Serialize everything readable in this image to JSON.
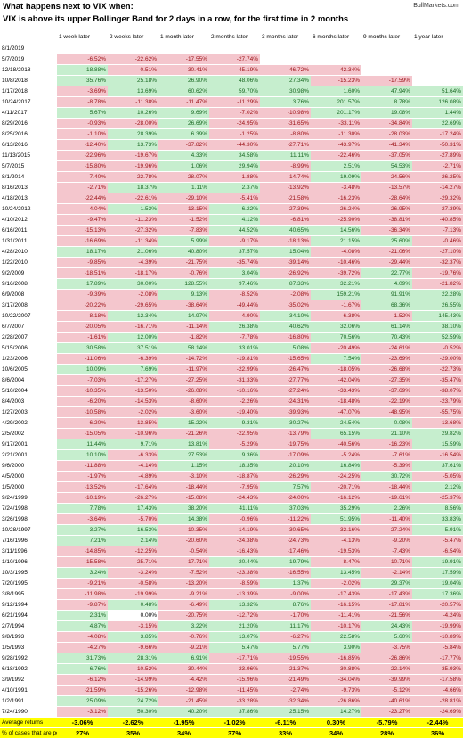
{
  "header": {
    "line1": "What happens next to VIX when:",
    "line2": "VIX is above its upper Bollinger Band for 2 days in a row, for the first time in 2 months",
    "site": "BullMarkets.com"
  },
  "chart_data": {
    "type": "table",
    "columns": [
      "1 week later",
      "2 weeks later",
      "1 month later",
      "2 months later",
      "3 months later",
      "6 months later",
      "9 months later",
      "1 year later"
    ],
    "rows": [
      {
        "date": "8/1/2019",
        "values": [
          "",
          "",
          "",
          "",
          "",
          "",
          "",
          ""
        ]
      },
      {
        "date": "5/7/2019",
        "values": [
          "-6.52%",
          "-22.62%",
          "-17.55%",
          "-27.74%",
          "",
          "",
          "",
          ""
        ]
      },
      {
        "date": "12/18/2018",
        "values": [
          "18.88%",
          "-0.51%",
          "-30.41%",
          "-45.19%",
          "-46.72%",
          "-42.34%",
          "",
          ""
        ]
      },
      {
        "date": "10/8/2018",
        "values": [
          "35.76%",
          "25.18%",
          "26.90%",
          "48.06%",
          "27.34%",
          "-15.23%",
          "-17.59%",
          ""
        ]
      },
      {
        "date": "1/17/2018",
        "values": [
          "-3.69%",
          "13.69%",
          "60.62%",
          "59.70%",
          "30.98%",
          "1.60%",
          "47.94%",
          "51.64%"
        ]
      },
      {
        "date": "10/24/2017",
        "values": [
          "-8.78%",
          "-11.38%",
          "-11.47%",
          "-11.29%",
          "3.76%",
          "201.57%",
          "8.78%",
          "126.08%"
        ]
      },
      {
        "date": "4/11/2017",
        "values": [
          "5.67%",
          "10.26%",
          "9.69%",
          "-7.02%",
          "-10.98%",
          "201.17%",
          "19.08%",
          "1.44%"
        ]
      },
      {
        "date": "8/29/2016",
        "values": [
          "-0.93%",
          "-28.00%",
          "26.69%",
          "-24.95%",
          "-31.65%",
          "-33.11%",
          "-34.84%",
          "22.69%"
        ]
      },
      {
        "date": "8/25/2016",
        "values": [
          "-1.10%",
          "28.39%",
          "6.39%",
          "-1.25%",
          "-8.80%",
          "-11.30%",
          "-28.03%",
          "-17.24%"
        ]
      },
      {
        "date": "6/13/2016",
        "values": [
          "-12.40%",
          "13.73%",
          "-37.82%",
          "-44.30%",
          "-27.71%",
          "-43.97%",
          "-41.34%",
          "-50.31%"
        ]
      },
      {
        "date": "11/13/2015",
        "values": [
          "-22.96%",
          "-19.67%",
          "4.33%",
          "34.58%",
          "11.11%",
          "-22.46%",
          "-37.05%",
          "-27.89%"
        ]
      },
      {
        "date": "5/7/2015",
        "values": [
          "-15.80%",
          "-19.96%",
          "1.06%",
          "29.94%",
          "-8.99%",
          "2.51%",
          "54.53%",
          "-2.71%"
        ]
      },
      {
        "date": "8/1/2014",
        "values": [
          "-7.40%",
          "-22.78%",
          "-28.07%",
          "-1.88%",
          "-14.74%",
          "19.09%",
          "-24.56%",
          "-26.25%"
        ]
      },
      {
        "date": "8/16/2013",
        "values": [
          "-2.71%",
          "18.37%",
          "1.11%",
          "2.37%",
          "-13.92%",
          "-3.48%",
          "-13.57%",
          "-14.27%"
        ]
      },
      {
        "date": "4/18/2013",
        "values": [
          "-22.44%",
          "-22.61%",
          "-29.10%",
          "-5.41%",
          "-21.58%",
          "-16.23%",
          "-28.64%",
          "-29.32%"
        ]
      },
      {
        "date": "10/24/2012",
        "values": [
          "-4.04%",
          "1.53%",
          "-13.15%",
          "6.22%",
          "-27.39%",
          "-26.24%",
          "-26.95%",
          "-27.39%"
        ]
      },
      {
        "date": "4/10/2012",
        "values": [
          "-9.47%",
          "-11.23%",
          "-1.52%",
          "4.12%",
          "-6.81%",
          "-25.90%",
          "-38.81%",
          "-40.85%"
        ]
      },
      {
        "date": "6/16/2011",
        "values": [
          "-15.13%",
          "-27.32%",
          "-7.83%",
          "44.52%",
          "40.65%",
          "14.56%",
          "-36.34%",
          "-7.13%"
        ]
      },
      {
        "date": "1/31/2011",
        "values": [
          "-16.69%",
          "-11.34%",
          "5.99%",
          "-9.17%",
          "-18.13%",
          "21.15%",
          "25.60%",
          "-0.46%"
        ]
      },
      {
        "date": "4/28/2010",
        "values": [
          "18.17%",
          "21.06%",
          "40.80%",
          "37.57%",
          "15.04%",
          "-4.08%",
          "-21.06%",
          "-27.10%"
        ]
      },
      {
        "date": "1/22/2010",
        "values": [
          "-9.85%",
          "-4.39%",
          "-21.75%",
          "-35.74%",
          "-39.14%",
          "-10.46%",
          "-29.44%",
          "-32.37%"
        ]
      },
      {
        "date": "9/2/2009",
        "values": [
          "-18.51%",
          "-18.17%",
          "-0.76%",
          "3.04%",
          "-26.92%",
          "-39.72%",
          "22.77%",
          "-19.76%"
        ]
      },
      {
        "date": "9/16/2008",
        "values": [
          "17.89%",
          "30.00%",
          "128.55%",
          "97.46%",
          "87.33%",
          "32.21%",
          "4.09%",
          "-21.82%"
        ]
      },
      {
        "date": "6/9/2008",
        "values": [
          "-9.39%",
          "-2.08%",
          "9.13%",
          "-8.52%",
          "-2.08%",
          "159.21%",
          "91.91%",
          "22.28%"
        ]
      },
      {
        "date": "3/17/2008",
        "values": [
          "-20.22%",
          "-29.65%",
          "-38.64%",
          "-49.44%",
          "-35.02%",
          "-1.67%",
          "68.36%",
          "26.55%"
        ]
      },
      {
        "date": "10/22/2007",
        "values": [
          "-8.18%",
          "12.34%",
          "14.97%",
          "-4.90%",
          "34.10%",
          "-6.38%",
          "-1.52%",
          "145.43%"
        ]
      },
      {
        "date": "6/7/2007",
        "values": [
          "-20.05%",
          "-16.71%",
          "-11.14%",
          "26.38%",
          "40.62%",
          "32.06%",
          "61.14%",
          "38.10%"
        ]
      },
      {
        "date": "2/28/2007",
        "values": [
          "-1.61%",
          "12.00%",
          "-1.82%",
          "-7.78%",
          "-16.80%",
          "70.56%",
          "70.43%",
          "52.59%"
        ]
      },
      {
        "date": "5/15/2006",
        "values": [
          "30.58%",
          "37.51%",
          "58.14%",
          "33.01%",
          "5.08%",
          "-20.49%",
          "-24.61%",
          "-0.52%"
        ]
      },
      {
        "date": "1/23/2006",
        "values": [
          "-11.06%",
          "-6.39%",
          "-14.72%",
          "-19.81%",
          "-15.65%",
          "7.54%",
          "-23.69%",
          "-29.00%"
        ]
      },
      {
        "date": "10/6/2005",
        "values": [
          "10.09%",
          "7.69%",
          "-11.97%",
          "-22.99%",
          "-26.47%",
          "-18.05%",
          "-26.68%",
          "-22.73%"
        ]
      },
      {
        "date": "8/6/2004",
        "values": [
          "-7.03%",
          "-17.27%",
          "-27.25%",
          "-31.33%",
          "-27.77%",
          "-42.04%",
          "-27.35%",
          "-35.47%"
        ]
      },
      {
        "date": "5/10/2004",
        "values": [
          "-10.35%",
          "-13.50%",
          "-26.08%",
          "-10.16%",
          "-27.24%",
          "-33.43%",
          "-37.69%",
          "-38.07%"
        ]
      },
      {
        "date": "8/4/2003",
        "values": [
          "-6.20%",
          "-14.53%",
          "-8.60%",
          "-2.26%",
          "-24.31%",
          "-18.48%",
          "-22.19%",
          "-23.79%"
        ]
      },
      {
        "date": "1/27/2003",
        "values": [
          "-10.58%",
          "-2.02%",
          "-3.60%",
          "-19.40%",
          "-39.93%",
          "-47.07%",
          "-48.95%",
          "-55.75%"
        ]
      },
      {
        "date": "4/29/2002",
        "values": [
          "-6.20%",
          "-13.85%",
          "15.22%",
          "9.31%",
          "30.27%",
          "24.54%",
          "0.08%",
          "-13.68%"
        ]
      },
      {
        "date": "2/5/2002",
        "values": [
          "-15.05%",
          "-10.96%",
          "-21.26%",
          "-22.95%",
          "-13.79%",
          "65.15%",
          "21.10%",
          "29.82%"
        ]
      },
      {
        "date": "9/17/2001",
        "values": [
          "11.44%",
          "9.71%",
          "13.81%",
          "-5.29%",
          "-19.75%",
          "-40.56%",
          "-16.23%",
          "15.59%"
        ]
      },
      {
        "date": "2/21/2001",
        "values": "10.10%|-6.33%|27.53%|9.36%|-17.09%|-5.24%|-7.61%|-16.54%"
      },
      {
        "date": "9/6/2000",
        "values": [
          "-11.88%",
          "-4.14%",
          "1.15%",
          "18.35%",
          "20.10%",
          "16.84%",
          "-5.39%",
          "37.61%"
        ]
      },
      {
        "date": "4/5/2000",
        "values": [
          "-1.97%",
          "-4.89%",
          "-3.10%",
          "-18.87%",
          "-26.29%",
          "-24.25%",
          "30.72%",
          "-5.05%"
        ]
      },
      {
        "date": "1/5/2000",
        "values": [
          "-13.52%",
          "-17.64%",
          "-18.44%",
          "-7.95%",
          "7.57%",
          "-20.71%",
          "-18.44%",
          "2.12%"
        ]
      },
      {
        "date": "9/24/1999",
        "values": [
          "-10.19%",
          "-26.27%",
          "-15.08%",
          "-24.43%",
          "-24.00%",
          "-16.12%",
          "-19.61%",
          "-25.37%"
        ]
      },
      {
        "date": "7/24/1998",
        "values": [
          "7.78%",
          "17.43%",
          "38.20%",
          "41.11%",
          "37.03%",
          "35.29%",
          "2.26%",
          "8.56%"
        ]
      },
      {
        "date": "3/26/1998",
        "values": [
          "-3.64%",
          "-5.70%",
          "14.38%",
          "-0.96%",
          "-11.22%",
          "51.95%",
          "-11.40%",
          "33.83%"
        ]
      },
      {
        "date": "10/28/1997",
        "values": [
          "3.27%",
          "16.53%",
          "-10.35%",
          "-14.19%",
          "-30.65%",
          "-32.16%",
          "-27.24%",
          "5.91%"
        ]
      },
      {
        "date": "7/16/1996",
        "values": [
          "7.21%",
          "2.14%",
          "-20.60%",
          "-24.38%",
          "-24.73%",
          "-4.13%",
          "-9.20%",
          "-5.47%"
        ]
      },
      {
        "date": "3/11/1996",
        "values": [
          "-14.85%",
          "-12.25%",
          "-0.54%",
          "-16.43%",
          "-17.46%",
          "-19.53%",
          "-7.43%",
          "-6.54%"
        ]
      },
      {
        "date": "1/10/1996",
        "values": [
          "-15.58%",
          "-25.71%",
          "-17.71%",
          "20.44%",
          "19.79%",
          "-8.47%",
          "-10.71%",
          "19.91%"
        ]
      },
      {
        "date": "10/3/1995",
        "values": [
          "3.24%",
          "-3.24%",
          "-7.52%",
          "-23.38%",
          "-16.55%",
          "13.45%",
          "-2.14%",
          "17.59%"
        ]
      },
      {
        "date": "7/20/1995",
        "values": [
          "-9.21%",
          "-0.58%",
          "-13.20%",
          "-8.59%",
          "1.37%",
          "-2.02%",
          "29.37%",
          "19.04%"
        ]
      },
      {
        "date": "3/8/1995",
        "values": [
          "-11.98%",
          "-19.99%",
          "-9.21%",
          "-13.39%",
          "-9.00%",
          "-17.43%",
          "-17.43%",
          "17.36%"
        ]
      },
      {
        "date": "9/12/1994",
        "values": [
          "-9.87%",
          "0.48%",
          "-6.49%",
          "13.32%",
          "8.76%",
          "-16.15%",
          "-17.81%",
          "-20.57%"
        ]
      },
      {
        "date": "6/21/1994",
        "values": [
          "2.31%",
          "0.00%",
          "-20.75%",
          "-12.72%",
          "-1.70%",
          "-11.41%",
          "-21.56%",
          "-4.24%"
        ]
      },
      {
        "date": "2/7/1994",
        "values": [
          "4.87%",
          "-3.15%",
          "3.22%",
          "21.20%",
          "11.17%",
          "-10.17%",
          "24.43%",
          "-19.99%"
        ]
      },
      {
        "date": "9/8/1993",
        "values": [
          "-4.08%",
          "3.85%",
          "-0.76%",
          "13.07%",
          "-6.27%",
          "22.58%",
          "5.60%",
          "-10.89%"
        ]
      },
      {
        "date": "1/5/1993",
        "values": [
          "-4.27%",
          "-9.66%",
          "-9.21%",
          "5.47%",
          "5.77%",
          "3.90%",
          "-3.75%",
          "-5.84%"
        ]
      },
      {
        "date": "9/28/1992",
        "values": [
          "31.73%",
          "28.31%",
          "6.91%",
          "-17.71%",
          "-19.55%",
          "-16.85%",
          "-26.86%",
          "-17.77%"
        ]
      },
      {
        "date": "6/18/1992",
        "values": [
          "6.76%",
          "-10.52%",
          "-30.44%",
          "-23.96%",
          "-21.37%",
          "-30.88%",
          "-22.14%",
          "-35.93%"
        ]
      },
      {
        "date": "3/9/1992",
        "values": [
          "-6.12%",
          "-14.99%",
          "-4.42%",
          "-15.96%",
          "-21.49%",
          "-34.04%",
          "-39.99%",
          "-17.58%"
        ]
      },
      {
        "date": "4/10/1991",
        "values": [
          "-21.59%",
          "-15.26%",
          "-12.98%",
          "-11.45%",
          "-2.74%",
          "-9.73%",
          "-5.12%",
          "-4.66%"
        ]
      },
      {
        "date": "1/2/1991",
        "values": [
          "25.09%",
          "24.72%",
          "-21.45%",
          "-33.28%",
          "-32.34%",
          "-26.86%",
          "-40.61%",
          "-28.81%"
        ]
      },
      {
        "date": "7/24/1990",
        "values": [
          "-3.12%",
          "50.30%",
          "40.20%",
          "37.86%",
          "25.15%",
          "14.27%",
          "-23.27%",
          "-24.69%"
        ]
      }
    ],
    "summary": [
      {
        "label": "Average returns",
        "values": [
          "-3.06%",
          "-2.62%",
          "-1.95%",
          "-1.02%",
          "-6.11%",
          "0.30%",
          "-5.79%",
          "-2.44%"
        ]
      },
      {
        "label": "% of cases that are positive",
        "values": [
          "27%",
          "35%",
          "34%",
          "37%",
          "33%",
          "34%",
          "28%",
          "36%"
        ]
      }
    ],
    "colors": {
      "negative_bg": "#f4c6cd",
      "negative_text": "#9b0f14",
      "positive_bg": "#c6eece",
      "positive_text": "#1a6a23",
      "summary_bg": "#ffff00"
    }
  }
}
